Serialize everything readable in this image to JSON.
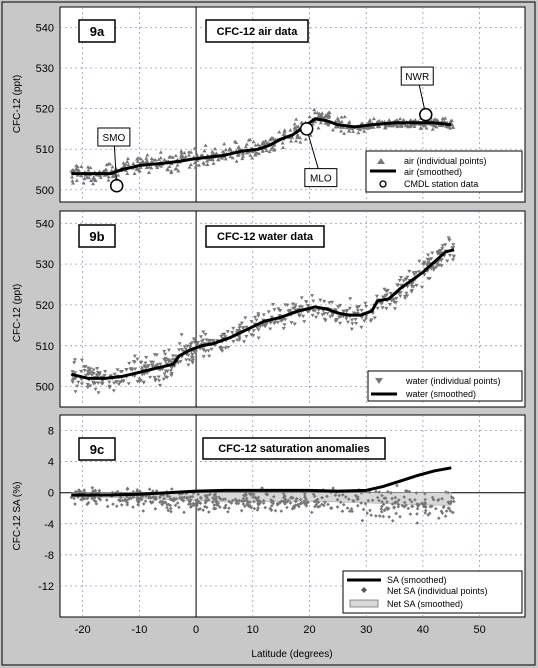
{
  "chart_data": [
    {
      "id": "a",
      "type": "scatter",
      "tag": "9a",
      "title": "CFC-12  air data",
      "ylabel": "CFC-12  (ppt)",
      "xlim": [
        -24,
        58
      ],
      "ylim": [
        497,
        545
      ],
      "yticks": [
        500,
        510,
        520,
        530,
        540
      ],
      "smoothed": [
        [
          -22,
          504
        ],
        [
          -18,
          504
        ],
        [
          -15,
          504
        ],
        [
          -13,
          505
        ],
        [
          -10,
          506
        ],
        [
          -6,
          506.5
        ],
        [
          -3,
          507
        ],
        [
          -1,
          507.5
        ],
        [
          2,
          508
        ],
        [
          5,
          508.5
        ],
        [
          8,
          509.5
        ],
        [
          11,
          510
        ],
        [
          13,
          511
        ],
        [
          15,
          512.5
        ],
        [
          17,
          513.5
        ],
        [
          19,
          515.5
        ],
        [
          21,
          517.5
        ],
        [
          23,
          517
        ],
        [
          25,
          516
        ],
        [
          28,
          515.5
        ],
        [
          31,
          516
        ],
        [
          35,
          516.5
        ],
        [
          39,
          516.5
        ],
        [
          42,
          516.5
        ],
        [
          45,
          516
        ]
      ],
      "stations": [
        {
          "name": "SMO",
          "x": -14,
          "y": 501
        },
        {
          "name": "MLO",
          "x": 19.5,
          "y": 515
        },
        {
          "name": "NWR",
          "x": 40.5,
          "y": 518.5
        }
      ],
      "legend": [
        "air (individual points)",
        "air (smoothed)",
        "CMDL station data"
      ]
    },
    {
      "id": "b",
      "type": "scatter",
      "tag": "9b",
      "title": "CFC-12 water data",
      "ylabel": "CFC-12   (ppt)",
      "xlim": [
        -24,
        58
      ],
      "ylim": [
        495,
        543
      ],
      "yticks": [
        500,
        510,
        520,
        530,
        540
      ],
      "smoothed": [
        [
          -22,
          503
        ],
        [
          -19,
          502
        ],
        [
          -16,
          502
        ],
        [
          -13,
          502.5
        ],
        [
          -10,
          503.5
        ],
        [
          -7,
          504.5
        ],
        [
          -4,
          505.5
        ],
        [
          -3,
          507.5
        ],
        [
          -1,
          509
        ],
        [
          1,
          510
        ],
        [
          3,
          510.5
        ],
        [
          6,
          512
        ],
        [
          9,
          514
        ],
        [
          12,
          516
        ],
        [
          15,
          517
        ],
        [
          18,
          518.5
        ],
        [
          21,
          519.5
        ],
        [
          23,
          519
        ],
        [
          25,
          518
        ],
        [
          27,
          517.5
        ],
        [
          29,
          517.5
        ],
        [
          31,
          518.5
        ],
        [
          32,
          521
        ],
        [
          34,
          521.5
        ],
        [
          36,
          524
        ],
        [
          38,
          526
        ],
        [
          40,
          528
        ],
        [
          42,
          530.5
        ],
        [
          44,
          533
        ],
        [
          45.5,
          533.5
        ]
      ],
      "legend": [
        "water (individual points)",
        "water (smoothed)"
      ]
    },
    {
      "id": "c",
      "type": "scatter",
      "tag": "9c",
      "title": "CFC-12 saturation anomalies",
      "ylabel": "CFC-12 SA     (%)",
      "xlim": [
        -24,
        58
      ],
      "ylim": [
        -16,
        10
      ],
      "yticks": [
        8,
        4,
        0,
        -4,
        -8,
        -12
      ],
      "sa_smoothed": [
        [
          -22,
          -0.3
        ],
        [
          -15,
          -0.3
        ],
        [
          -10,
          -0.2
        ],
        [
          -5,
          0
        ],
        [
          0,
          0.2
        ],
        [
          5,
          0.3
        ],
        [
          10,
          0.3
        ],
        [
          15,
          0.3
        ],
        [
          20,
          0.3
        ],
        [
          25,
          0.2
        ],
        [
          30,
          0.3
        ],
        [
          33,
          0.8
        ],
        [
          36,
          1.5
        ],
        [
          39,
          2.2
        ],
        [
          42,
          2.8
        ],
        [
          45,
          3.2
        ]
      ],
      "net_smoothed": [
        [
          -22,
          -0.5
        ],
        [
          -15,
          -0.6
        ],
        [
          -10,
          -0.7
        ],
        [
          -5,
          -0.9
        ],
        [
          0,
          -1
        ],
        [
          5,
          -1.2
        ],
        [
          10,
          -1.2
        ],
        [
          15,
          -1.1
        ],
        [
          20,
          -1.1
        ],
        [
          25,
          -1.2
        ],
        [
          30,
          -1.3
        ],
        [
          33,
          -1.4
        ],
        [
          36,
          -1.5
        ],
        [
          39,
          -1.5
        ],
        [
          42,
          -1.6
        ],
        [
          45,
          -1.6
        ]
      ],
      "legend": [
        "SA (smoothed)",
        "Net SA (individual points)",
        "Net SA (smoothed)"
      ]
    }
  ],
  "xticks": [
    -20,
    -10,
    0,
    10,
    20,
    30,
    40,
    50
  ],
  "xlabel": "Latitude   (degrees)"
}
